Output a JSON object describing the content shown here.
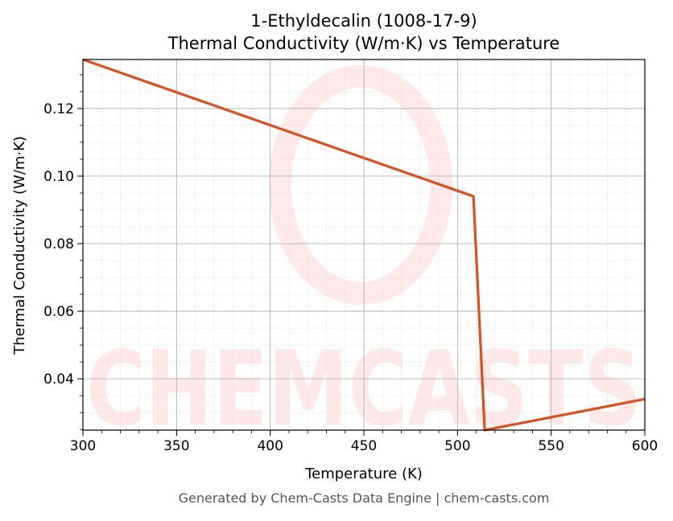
{
  "chart_data": {
    "type": "line",
    "title_line1": "1-Ethyldecalin (1008-17-9)",
    "title_line2": "Thermal Conductivity (W/m·K) vs Temperature",
    "xlabel": "Temperature (K)",
    "ylabel": "Thermal Conductivity (W/m·K)",
    "xlim": [
      300,
      600
    ],
    "ylim": [
      0.0248,
      0.1345
    ],
    "x_ticks": [
      300,
      350,
      400,
      450,
      500,
      550,
      600
    ],
    "x_tick_labels": [
      "300",
      "350",
      "400",
      "450",
      "500",
      "550",
      "600"
    ],
    "y_ticks": [
      0.04,
      0.06,
      0.08,
      0.1,
      0.12
    ],
    "y_tick_labels": [
      "0.04",
      "0.06",
      "0.08",
      "0.10",
      "0.12"
    ],
    "grid": true,
    "series": [
      {
        "color": "#d9501e",
        "x": [
          300,
          508.5,
          514.5,
          600
        ],
        "y": [
          0.1345,
          0.094,
          0.0248,
          0.034
        ]
      }
    ]
  },
  "watermark": "CHEMCASTS",
  "footer": "Generated by Chem-Casts Data Engine | chem-casts.com"
}
